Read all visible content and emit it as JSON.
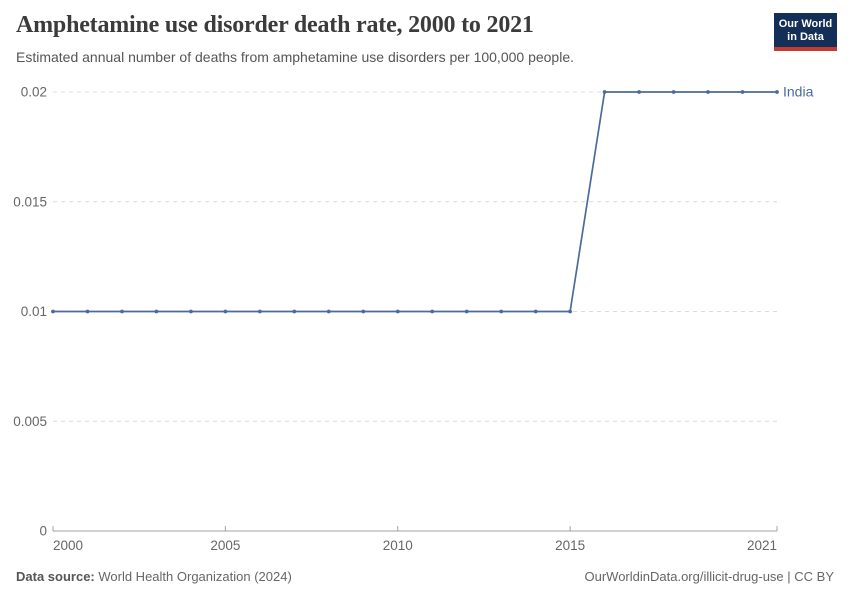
{
  "header": {
    "title": "Amphetamine use disorder death rate, 2000 to 2021",
    "subtitle": "Estimated annual number of deaths from amphetamine use disorders per 100,000 people.",
    "logo": {
      "line1": "Our World",
      "line2": "in Data"
    }
  },
  "footer": {
    "source_label": "Data source:",
    "source_value": " World Health Organization (2024)",
    "credit": "OurWorldinData.org/illicit-drug-use | CC BY"
  },
  "colors": {
    "series": "#4C6A9C",
    "grid": "#DCDCDC",
    "axis": "#A3A3A3",
    "tick_label": "#666666",
    "title": "#3B3B3B",
    "subtitle": "#555555",
    "logo_bg": "#132E57",
    "logo_stripe": "#C23B33"
  },
  "chart_data": {
    "type": "line",
    "title": "Amphetamine use disorder death rate, 2000 to 2021",
    "xlabel": "",
    "ylabel": "",
    "xlim": [
      2000,
      2021
    ],
    "ylim": [
      0,
      0.02
    ],
    "grid": true,
    "legend_position": "end-of-line-label",
    "x_ticks": [
      {
        "value": 2000,
        "label": "2000"
      },
      {
        "value": 2005,
        "label": "2005"
      },
      {
        "value": 2010,
        "label": "2010"
      },
      {
        "value": 2015,
        "label": "2015"
      },
      {
        "value": 2021,
        "label": "2021"
      }
    ],
    "y_ticks": [
      {
        "value": 0,
        "label": "0"
      },
      {
        "value": 0.005,
        "label": "0.005"
      },
      {
        "value": 0.01,
        "label": "0.01"
      },
      {
        "value": 0.015,
        "label": "0.015"
      },
      {
        "value": 0.02,
        "label": "0.02"
      }
    ],
    "series": [
      {
        "name": "India",
        "color": "#4C6A9C",
        "x": [
          2000,
          2001,
          2002,
          2003,
          2004,
          2005,
          2006,
          2007,
          2008,
          2009,
          2010,
          2011,
          2012,
          2013,
          2014,
          2015,
          2016,
          2017,
          2018,
          2019,
          2020,
          2021
        ],
        "values": [
          0.01,
          0.01,
          0.01,
          0.01,
          0.01,
          0.01,
          0.01,
          0.01,
          0.01,
          0.01,
          0.01,
          0.01,
          0.01,
          0.01,
          0.01,
          0.01,
          0.02,
          0.02,
          0.02,
          0.02,
          0.02,
          0.02
        ]
      }
    ]
  }
}
